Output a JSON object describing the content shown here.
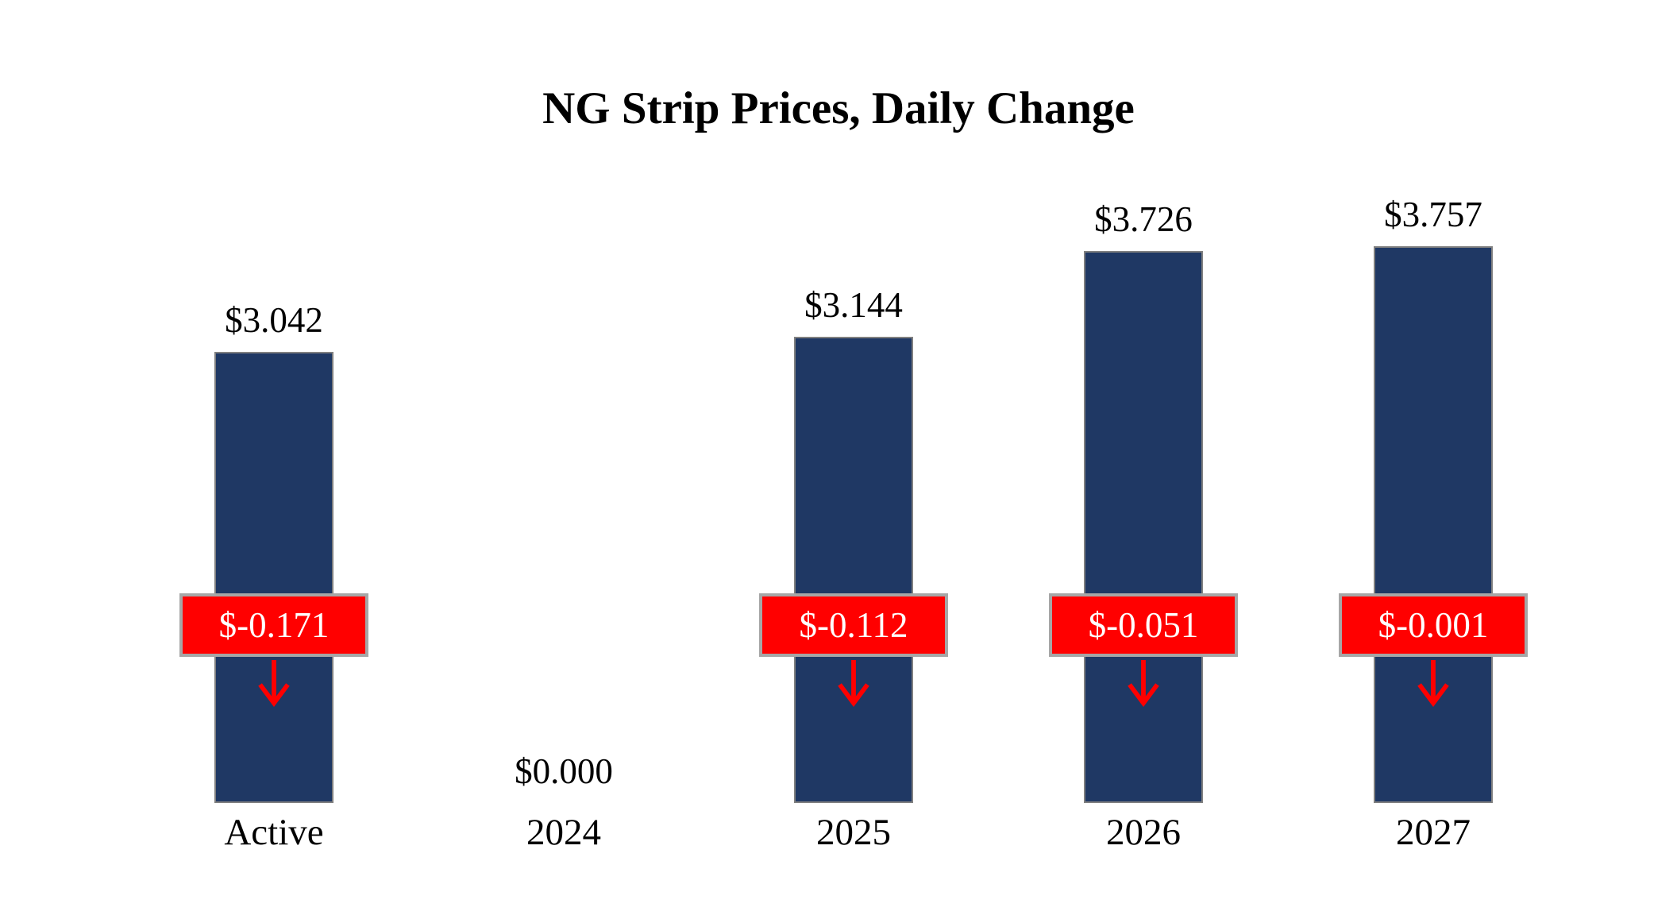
{
  "chart_data": {
    "type": "bar",
    "title": "NG Strip Prices, Daily Change",
    "categories": [
      "Active",
      "2024",
      "2025",
      "2026",
      "2027"
    ],
    "series": [
      {
        "name": "Strip Price",
        "values": [
          3.042,
          0.0,
          3.144,
          3.726,
          3.757
        ]
      },
      {
        "name": "Daily Change",
        "values": [
          -0.171,
          null,
          -0.112,
          -0.051,
          -0.001
        ]
      }
    ],
    "value_labels": [
      "$3.042",
      "$0.000",
      "$3.144",
      "$3.726",
      "$3.757"
    ],
    "change_labels": [
      "$-0.171",
      null,
      "$-0.112",
      "$-0.051",
      "$-0.001"
    ],
    "ylim": [
      0,
      3.757
    ],
    "grid": false,
    "legend": "none",
    "colors": {
      "bar": "#1F3864",
      "bar_border": "#808080",
      "change_box": "#FF0000",
      "change_box_border": "#A6A6A6",
      "change_text": "#FFFFFF",
      "arrow": "#FF0000",
      "text": "#000000",
      "background": "#FFFFFF"
    }
  }
}
